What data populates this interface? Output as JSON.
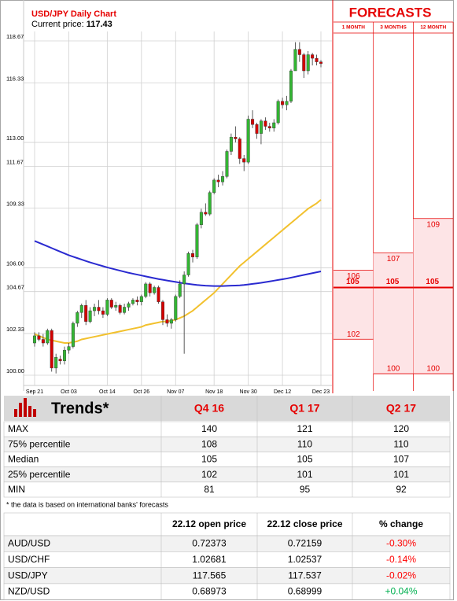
{
  "chart_data": {
    "type": "candlestick",
    "title": "USD/JPY Daily Chart",
    "current_price_label": "Current price:",
    "current_price": 117.43,
    "categories": [
      "Sep 21",
      null,
      null,
      null,
      null,
      null,
      null,
      null,
      "Oct 03",
      null,
      null,
      null,
      null,
      null,
      null,
      null,
      null,
      "Oct 14",
      null,
      null,
      null,
      null,
      null,
      null,
      null,
      "Oct 26",
      null,
      null,
      null,
      null,
      null,
      null,
      null,
      "Nov 07",
      null,
      null,
      null,
      null,
      null,
      null,
      null,
      null,
      "Nov 18",
      null,
      null,
      null,
      null,
      null,
      null,
      null,
      "Nov 30",
      null,
      null,
      null,
      null,
      null,
      null,
      null,
      "Dec 12",
      null,
      null,
      null,
      null,
      null,
      null,
      null,
      null,
      "Dec 23"
    ],
    "open": [
      101.8,
      102.2,
      102.0,
      101.8,
      102.5,
      100.4,
      100.9,
      100.8,
      101.4,
      101.6,
      102.9,
      103.5,
      103.9,
      103.0,
      103.6,
      103.8,
      103.6,
      103.4,
      104.2,
      103.8,
      103.9,
      103.5,
      103.8,
      104.0,
      104.2,
      104.1,
      104.4,
      105.1,
      104.6,
      104.9,
      104.1,
      103.1,
      102.9,
      103.1,
      104.4,
      105.1,
      105.6,
      106.8,
      106.6,
      108.4,
      109.1,
      109.0,
      110.2,
      110.9,
      110.8,
      111.1,
      112.5,
      113.3,
      113.2,
      112.1,
      111.9,
      114.3,
      114.0,
      113.5,
      114.2,
      113.9,
      113.8,
      114.1,
      115.3,
      115.1,
      115.3,
      117.0,
      118.2,
      117.9,
      117.0,
      117.9,
      117.7,
      117.5
    ],
    "high": [
      102.4,
      102.4,
      102.3,
      102.6,
      102.6,
      101.2,
      101.1,
      101.6,
      101.8,
      103.0,
      103.6,
      104.0,
      104.2,
      103.8,
      104.0,
      104.2,
      103.8,
      104.3,
      104.3,
      104.1,
      104.0,
      104.0,
      104.1,
      104.3,
      104.4,
      104.5,
      105.2,
      105.2,
      105.0,
      105.0,
      104.2,
      103.4,
      103.2,
      104.5,
      105.3,
      105.8,
      106.9,
      107.0,
      108.5,
      109.3,
      109.6,
      110.3,
      111.0,
      111.2,
      111.4,
      112.6,
      113.5,
      113.9,
      113.3,
      112.3,
      114.5,
      114.8,
      114.1,
      114.3,
      114.4,
      114.1,
      114.3,
      115.4,
      115.5,
      115.6,
      117.1,
      118.6,
      118.6,
      118.0,
      118.1,
      118.0,
      117.9,
      117.6
    ],
    "low": [
      101.6,
      101.9,
      101.6,
      101.7,
      100.2,
      100.1,
      100.6,
      100.6,
      101.2,
      101.5,
      102.7,
      103.2,
      102.8,
      102.9,
      103.3,
      103.4,
      103.2,
      103.3,
      103.7,
      103.6,
      103.4,
      103.4,
      103.6,
      103.9,
      103.9,
      103.9,
      104.3,
      104.4,
      104.5,
      104.0,
      102.8,
      102.7,
      102.6,
      103.0,
      104.3,
      101.2,
      105.5,
      106.3,
      106.5,
      108.2,
      108.9,
      108.9,
      110.1,
      110.5,
      110.6,
      111.0,
      112.3,
      113.0,
      111.8,
      111.4,
      111.8,
      113.8,
      113.2,
      112.9,
      113.7,
      113.6,
      113.6,
      114.0,
      114.9,
      114.8,
      115.2,
      117.0,
      117.5,
      116.6,
      116.8,
      117.3,
      117.3,
      117.2
    ],
    "close": [
      102.2,
      102.0,
      101.8,
      102.5,
      100.4,
      101.0,
      100.8,
      101.4,
      101.6,
      102.9,
      103.5,
      103.9,
      103.0,
      103.6,
      103.8,
      103.6,
      103.4,
      104.2,
      103.8,
      103.9,
      103.5,
      103.8,
      104.0,
      104.2,
      104.1,
      104.4,
      105.1,
      104.6,
      104.9,
      104.1,
      103.1,
      102.9,
      103.1,
      104.4,
      105.1,
      105.6,
      106.8,
      106.6,
      108.4,
      109.1,
      109.0,
      110.2,
      110.9,
      110.8,
      111.1,
      112.5,
      113.3,
      113.2,
      112.1,
      111.9,
      114.3,
      114.0,
      113.5,
      114.2,
      113.9,
      113.8,
      114.1,
      115.3,
      115.1,
      115.3,
      117.0,
      118.2,
      117.9,
      117.0,
      117.9,
      117.7,
      117.5,
      117.4
    ],
    "up_color": "#33b533",
    "down_color": "#d40000",
    "series": [
      {
        "color": "#f2c12e",
        "values": [
          102.3,
          102.2,
          102.1,
          102.0,
          101.95,
          101.9,
          101.85,
          101.8,
          101.8,
          101.85,
          101.9,
          102.0,
          102.05,
          102.1,
          102.15,
          102.2,
          102.25,
          102.3,
          102.35,
          102.4,
          102.45,
          102.5,
          102.55,
          102.6,
          102.65,
          102.7,
          102.8,
          102.85,
          102.9,
          102.95,
          103.0,
          103.0,
          103.05,
          103.1,
          103.2,
          103.3,
          103.45,
          103.6,
          103.8,
          104.0,
          104.2,
          104.4,
          104.6,
          104.85,
          105.1,
          105.35,
          105.6,
          105.85,
          106.1,
          106.3,
          106.5,
          106.7,
          106.9,
          107.1,
          107.3,
          107.5,
          107.7,
          107.9,
          108.1,
          108.3,
          108.5,
          108.7,
          108.9,
          109.1,
          109.3,
          109.45,
          109.6,
          109.8
        ]
      },
      {
        "color": "#2a2ad0",
        "values": [
          107.5,
          107.4,
          107.3,
          107.2,
          107.1,
          107.0,
          106.9,
          106.8,
          106.7,
          106.62,
          106.54,
          106.46,
          106.38,
          106.3,
          106.23,
          106.16,
          106.09,
          106.02,
          105.96,
          105.9,
          105.84,
          105.78,
          105.72,
          105.67,
          105.62,
          105.57,
          105.52,
          105.47,
          105.42,
          105.37,
          105.33,
          105.29,
          105.25,
          105.21,
          105.17,
          105.13,
          105.1,
          105.07,
          105.04,
          105.02,
          105.0,
          104.99,
          104.98,
          104.98,
          104.98,
          104.99,
          105.0,
          105.01,
          105.02,
          105.04,
          105.07,
          105.1,
          105.13,
          105.16,
          105.2,
          105.24,
          105.28,
          105.32,
          105.36,
          105.4,
          105.45,
          105.5,
          105.55,
          105.6,
          105.65,
          105.7,
          105.75,
          105.8
        ]
      }
    ],
    "ylim": [
      100,
      118.67
    ],
    "yticks": [
      {
        "value": 100,
        "label": "100.00"
      },
      102.33,
      104.67,
      {
        "value": 106,
        "label": "106.00"
      },
      109.33,
      111.67,
      {
        "value": 113,
        "label": "113.00"
      },
      116.33,
      118.67
    ],
    "grid": true
  },
  "forecasts": {
    "title": "FORECASTS",
    "color": "#e60000",
    "fill": "#fde4e6",
    "ylim": [
      99,
      120.3
    ],
    "columns": [
      {
        "label": "1 MONTH",
        "high": 106,
        "median": 105,
        "low": 102
      },
      {
        "label": "3 MONTHS",
        "high": 107,
        "median": 105,
        "low": 100
      },
      {
        "label": "12 MONTH",
        "high": 109,
        "median": 105,
        "low": 100
      }
    ]
  },
  "trends": {
    "title": "Trends*",
    "columns": [
      "Q4 16",
      "Q1 17",
      "Q2 17"
    ],
    "rows": [
      {
        "label": "MAX",
        "values": [
          140,
          121,
          120
        ]
      },
      {
        "label": "75% percentile",
        "values": [
          108,
          110,
          110
        ]
      },
      {
        "label": "Median",
        "values": [
          105,
          105,
          107
        ]
      },
      {
        "label": "25% percentile",
        "values": [
          102,
          101,
          101
        ]
      },
      {
        "label": "MIN",
        "values": [
          81,
          95,
          92
        ]
      }
    ],
    "note": "* the data is based on international banks' forecasts"
  },
  "prices": {
    "columns": [
      "22.12 open price",
      "22.12 close price",
      "% change"
    ],
    "positive_color": "#00b050",
    "negative_color": "#ff0000",
    "rows": [
      {
        "pair": "AUD/USD",
        "open": 0.72373,
        "close": 0.72159,
        "change": "-0.30%"
      },
      {
        "pair": "USD/CHF",
        "open": 1.02681,
        "close": 1.02537,
        "change": "-0.14%"
      },
      {
        "pair": "USD/JPY",
        "open": 117.565,
        "close": 117.537,
        "change": "-0.02%"
      },
      {
        "pair": "NZD/USD",
        "open": 0.68973,
        "close": 0.68999,
        "change": "+0.04%"
      }
    ]
  }
}
